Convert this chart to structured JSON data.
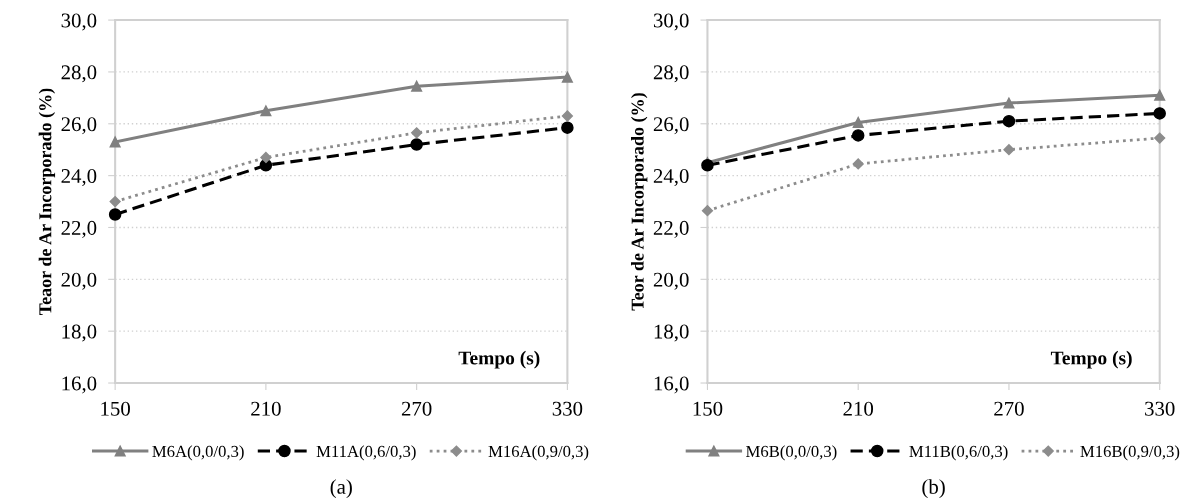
{
  "chart_data": [
    {
      "type": "line",
      "title": "(a)",
      "xlabel": "Tempo (s)",
      "ylabel": "Teaor de Ar Incorporado (%)",
      "x": [
        150,
        210,
        270,
        330
      ],
      "series": [
        {
          "name": "M6A(0,0/0,3)",
          "color": "#808080",
          "values": [
            25.3,
            26.5,
            27.45,
            27.8
          ],
          "marker": "triangle",
          "line_style": "solid"
        },
        {
          "name": "M11A(0,6/0,3)",
          "color": "#000000",
          "values": [
            22.5,
            24.4,
            25.2,
            25.85
          ],
          "marker": "circle",
          "line_style": "dashed"
        },
        {
          "name": "M16A(0,9/0,3)",
          "color": "#8c8c8c",
          "values": [
            23.0,
            24.7,
            25.65,
            26.3
          ],
          "marker": "diamond",
          "line_style": "dotted"
        }
      ],
      "xlim": [
        150,
        330
      ],
      "xticks": [
        150,
        210,
        270,
        330
      ],
      "ylim": [
        16,
        30
      ],
      "yticks": [
        {
          "value": 16,
          "label": "16,0"
        },
        {
          "value": 18,
          "label": "18,0"
        },
        {
          "value": 20,
          "label": "20,0"
        },
        {
          "value": 22,
          "label": "22,0"
        },
        {
          "value": 24,
          "label": "24,0"
        },
        {
          "value": 26,
          "label": "26,0"
        },
        {
          "value": 28,
          "label": "28,0"
        },
        {
          "value": 30,
          "label": "30,0"
        }
      ],
      "grid": "y",
      "legend": "bottom"
    },
    {
      "type": "line",
      "title": "(b)",
      "xlabel": "Tempo (s)",
      "ylabel": "Teor de Ar Incorporado (%)",
      "x": [
        150,
        210,
        270,
        330
      ],
      "series": [
        {
          "name": "M6B(0,0/0,3)",
          "color": "#808080",
          "values": [
            24.5,
            26.05,
            26.8,
            27.1
          ],
          "marker": "triangle",
          "line_style": "solid"
        },
        {
          "name": "M11B(0,6/0,3)",
          "color": "#000000",
          "values": [
            24.4,
            25.55,
            26.1,
            26.4
          ],
          "marker": "circle",
          "line_style": "dashed"
        },
        {
          "name": "M16B(0,9/0,3)",
          "color": "#8c8c8c",
          "values": [
            22.65,
            24.45,
            25.0,
            25.45
          ],
          "marker": "diamond",
          "line_style": "dotted"
        }
      ],
      "xlim": [
        150,
        330
      ],
      "xticks": [
        150,
        210,
        270,
        330
      ],
      "ylim": [
        16,
        30
      ],
      "yticks": [
        {
          "value": 16,
          "label": "16,0"
        },
        {
          "value": 18,
          "label": "18,0"
        },
        {
          "value": 20,
          "label": "20,0"
        },
        {
          "value": 22,
          "label": "22,0"
        },
        {
          "value": 24,
          "label": "24,0"
        },
        {
          "value": 26,
          "label": "26,0"
        },
        {
          "value": 28,
          "label": "28,0"
        },
        {
          "value": 30,
          "label": "30,0"
        }
      ],
      "grid": "y",
      "legend": "bottom"
    }
  ]
}
